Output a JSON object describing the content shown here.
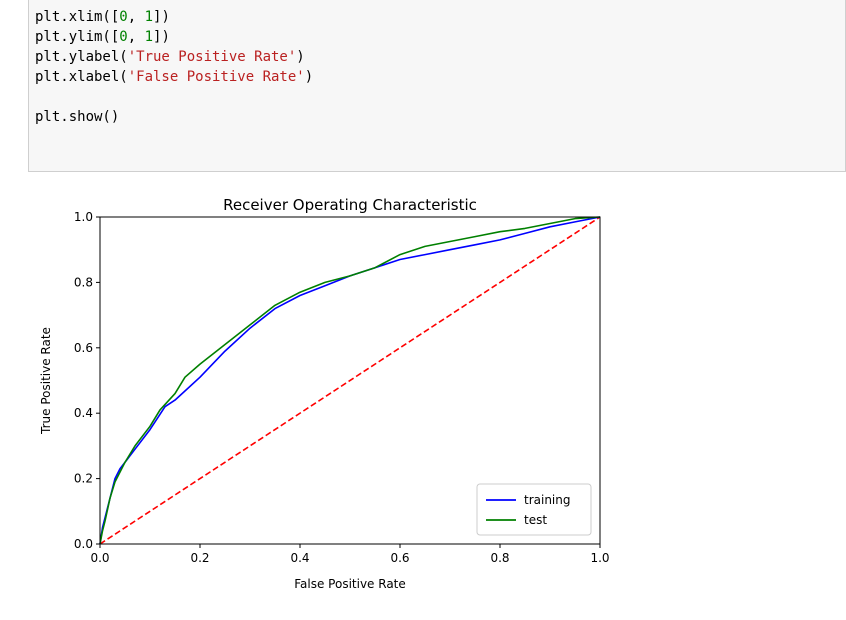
{
  "code_cell": {
    "lines": [
      [
        {
          "t": "plt.xlim([",
          "k": "plain"
        },
        {
          "t": "0",
          "k": "num"
        },
        {
          "t": ", ",
          "k": "plain"
        },
        {
          "t": "1",
          "k": "num"
        },
        {
          "t": "])",
          "k": "plain"
        }
      ],
      [
        {
          "t": "plt.ylim([",
          "k": "plain"
        },
        {
          "t": "0",
          "k": "num"
        },
        {
          "t": ", ",
          "k": "plain"
        },
        {
          "t": "1",
          "k": "num"
        },
        {
          "t": "])",
          "k": "plain"
        }
      ],
      [
        {
          "t": "plt.ylabel(",
          "k": "plain"
        },
        {
          "t": "'True Positive Rate'",
          "k": "str"
        },
        {
          "t": ")",
          "k": "plain"
        }
      ],
      [
        {
          "t": "plt.xlabel(",
          "k": "plain"
        },
        {
          "t": "'False Positive Rate'",
          "k": "str"
        },
        {
          "t": ")",
          "k": "plain"
        }
      ],
      [],
      [
        {
          "t": "plt.show()",
          "k": "plain"
        }
      ]
    ]
  },
  "chart_data": {
    "type": "line",
    "title": "Receiver Operating Characteristic",
    "xlabel": "False Positive Rate",
    "ylabel": "True Positive Rate",
    "xlim": [
      0,
      1
    ],
    "ylim": [
      0,
      1
    ],
    "xticks": [
      "0.0",
      "0.2",
      "0.4",
      "0.6",
      "0.8",
      "1.0"
    ],
    "yticks": [
      "0.0",
      "0.2",
      "0.4",
      "0.6",
      "0.8",
      "1.0"
    ],
    "grid": false,
    "legend": "lower-right",
    "series": [
      {
        "name": "training",
        "color": "#0000ff",
        "x": [
          0,
          0.005,
          0.01,
          0.02,
          0.03,
          0.04,
          0.05,
          0.07,
          0.1,
          0.13,
          0.15,
          0.2,
          0.25,
          0.3,
          0.35,
          0.4,
          0.45,
          0.5,
          0.55,
          0.6,
          0.65,
          0.7,
          0.75,
          0.8,
          0.85,
          0.9,
          0.95,
          1.0
        ],
        "y": [
          0,
          0.05,
          0.08,
          0.14,
          0.2,
          0.23,
          0.25,
          0.29,
          0.35,
          0.42,
          0.44,
          0.51,
          0.59,
          0.66,
          0.72,
          0.76,
          0.79,
          0.82,
          0.845,
          0.87,
          0.885,
          0.9,
          0.915,
          0.93,
          0.95,
          0.97,
          0.985,
          1.0
        ]
      },
      {
        "name": "test",
        "color": "#008000",
        "x": [
          0,
          0.005,
          0.01,
          0.02,
          0.03,
          0.05,
          0.07,
          0.1,
          0.12,
          0.15,
          0.17,
          0.2,
          0.25,
          0.3,
          0.35,
          0.4,
          0.45,
          0.5,
          0.55,
          0.6,
          0.65,
          0.7,
          0.75,
          0.8,
          0.85,
          0.9,
          0.95,
          1.0
        ],
        "y": [
          0,
          0.04,
          0.07,
          0.14,
          0.19,
          0.25,
          0.3,
          0.36,
          0.41,
          0.46,
          0.51,
          0.55,
          0.61,
          0.67,
          0.73,
          0.77,
          0.8,
          0.82,
          0.845,
          0.885,
          0.91,
          0.925,
          0.94,
          0.955,
          0.965,
          0.98,
          0.995,
          1.0
        ]
      },
      {
        "name": "",
        "color": "#ff0000",
        "dashed": true,
        "x": [
          0,
          1
        ],
        "y": [
          0,
          1
        ]
      }
    ]
  }
}
